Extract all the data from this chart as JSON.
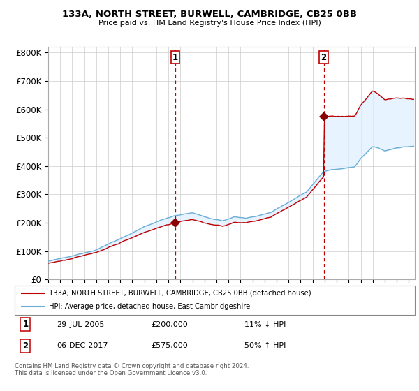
{
  "title": "133A, NORTH STREET, BURWELL, CAMBRIDGE, CB25 0BB",
  "subtitle": "Price paid vs. HM Land Registry's House Price Index (HPI)",
  "ylabel_ticks": [
    "£0",
    "£100K",
    "£200K",
    "£300K",
    "£400K",
    "£500K",
    "£600K",
    "£700K",
    "£800K"
  ],
  "ytick_values": [
    0,
    100000,
    200000,
    300000,
    400000,
    500000,
    600000,
    700000,
    800000
  ],
  "ylim": [
    0,
    820000
  ],
  "xlim_start": 1995.0,
  "xlim_end": 2025.5,
  "sale1_year": 2005.57,
  "sale1_price": 200000,
  "sale1_label": "1",
  "sale2_year": 2017.92,
  "sale2_price": 575000,
  "sale2_label": "2",
  "legend_line1": "133A, NORTH STREET, BURWELL, CAMBRIDGE, CB25 0BB (detached house)",
  "legend_line2": "HPI: Average price, detached house, East Cambridgeshire",
  "table_row1": [
    "1",
    "29-JUL-2005",
    "£200,000",
    "11% ↓ HPI"
  ],
  "table_row2": [
    "2",
    "06-DEC-2017",
    "£575,000",
    "50% ↑ HPI"
  ],
  "footer": "Contains HM Land Registry data © Crown copyright and database right 2024.\nThis data is licensed under the Open Government Licence v3.0.",
  "hpi_color": "#6baed6",
  "price_color": "#c00000",
  "sale_marker_color": "#8b0000",
  "vline_color": "#c00000",
  "grid_color": "#cccccc",
  "fill_color": "#ddeeff",
  "background_color": "#ffffff"
}
